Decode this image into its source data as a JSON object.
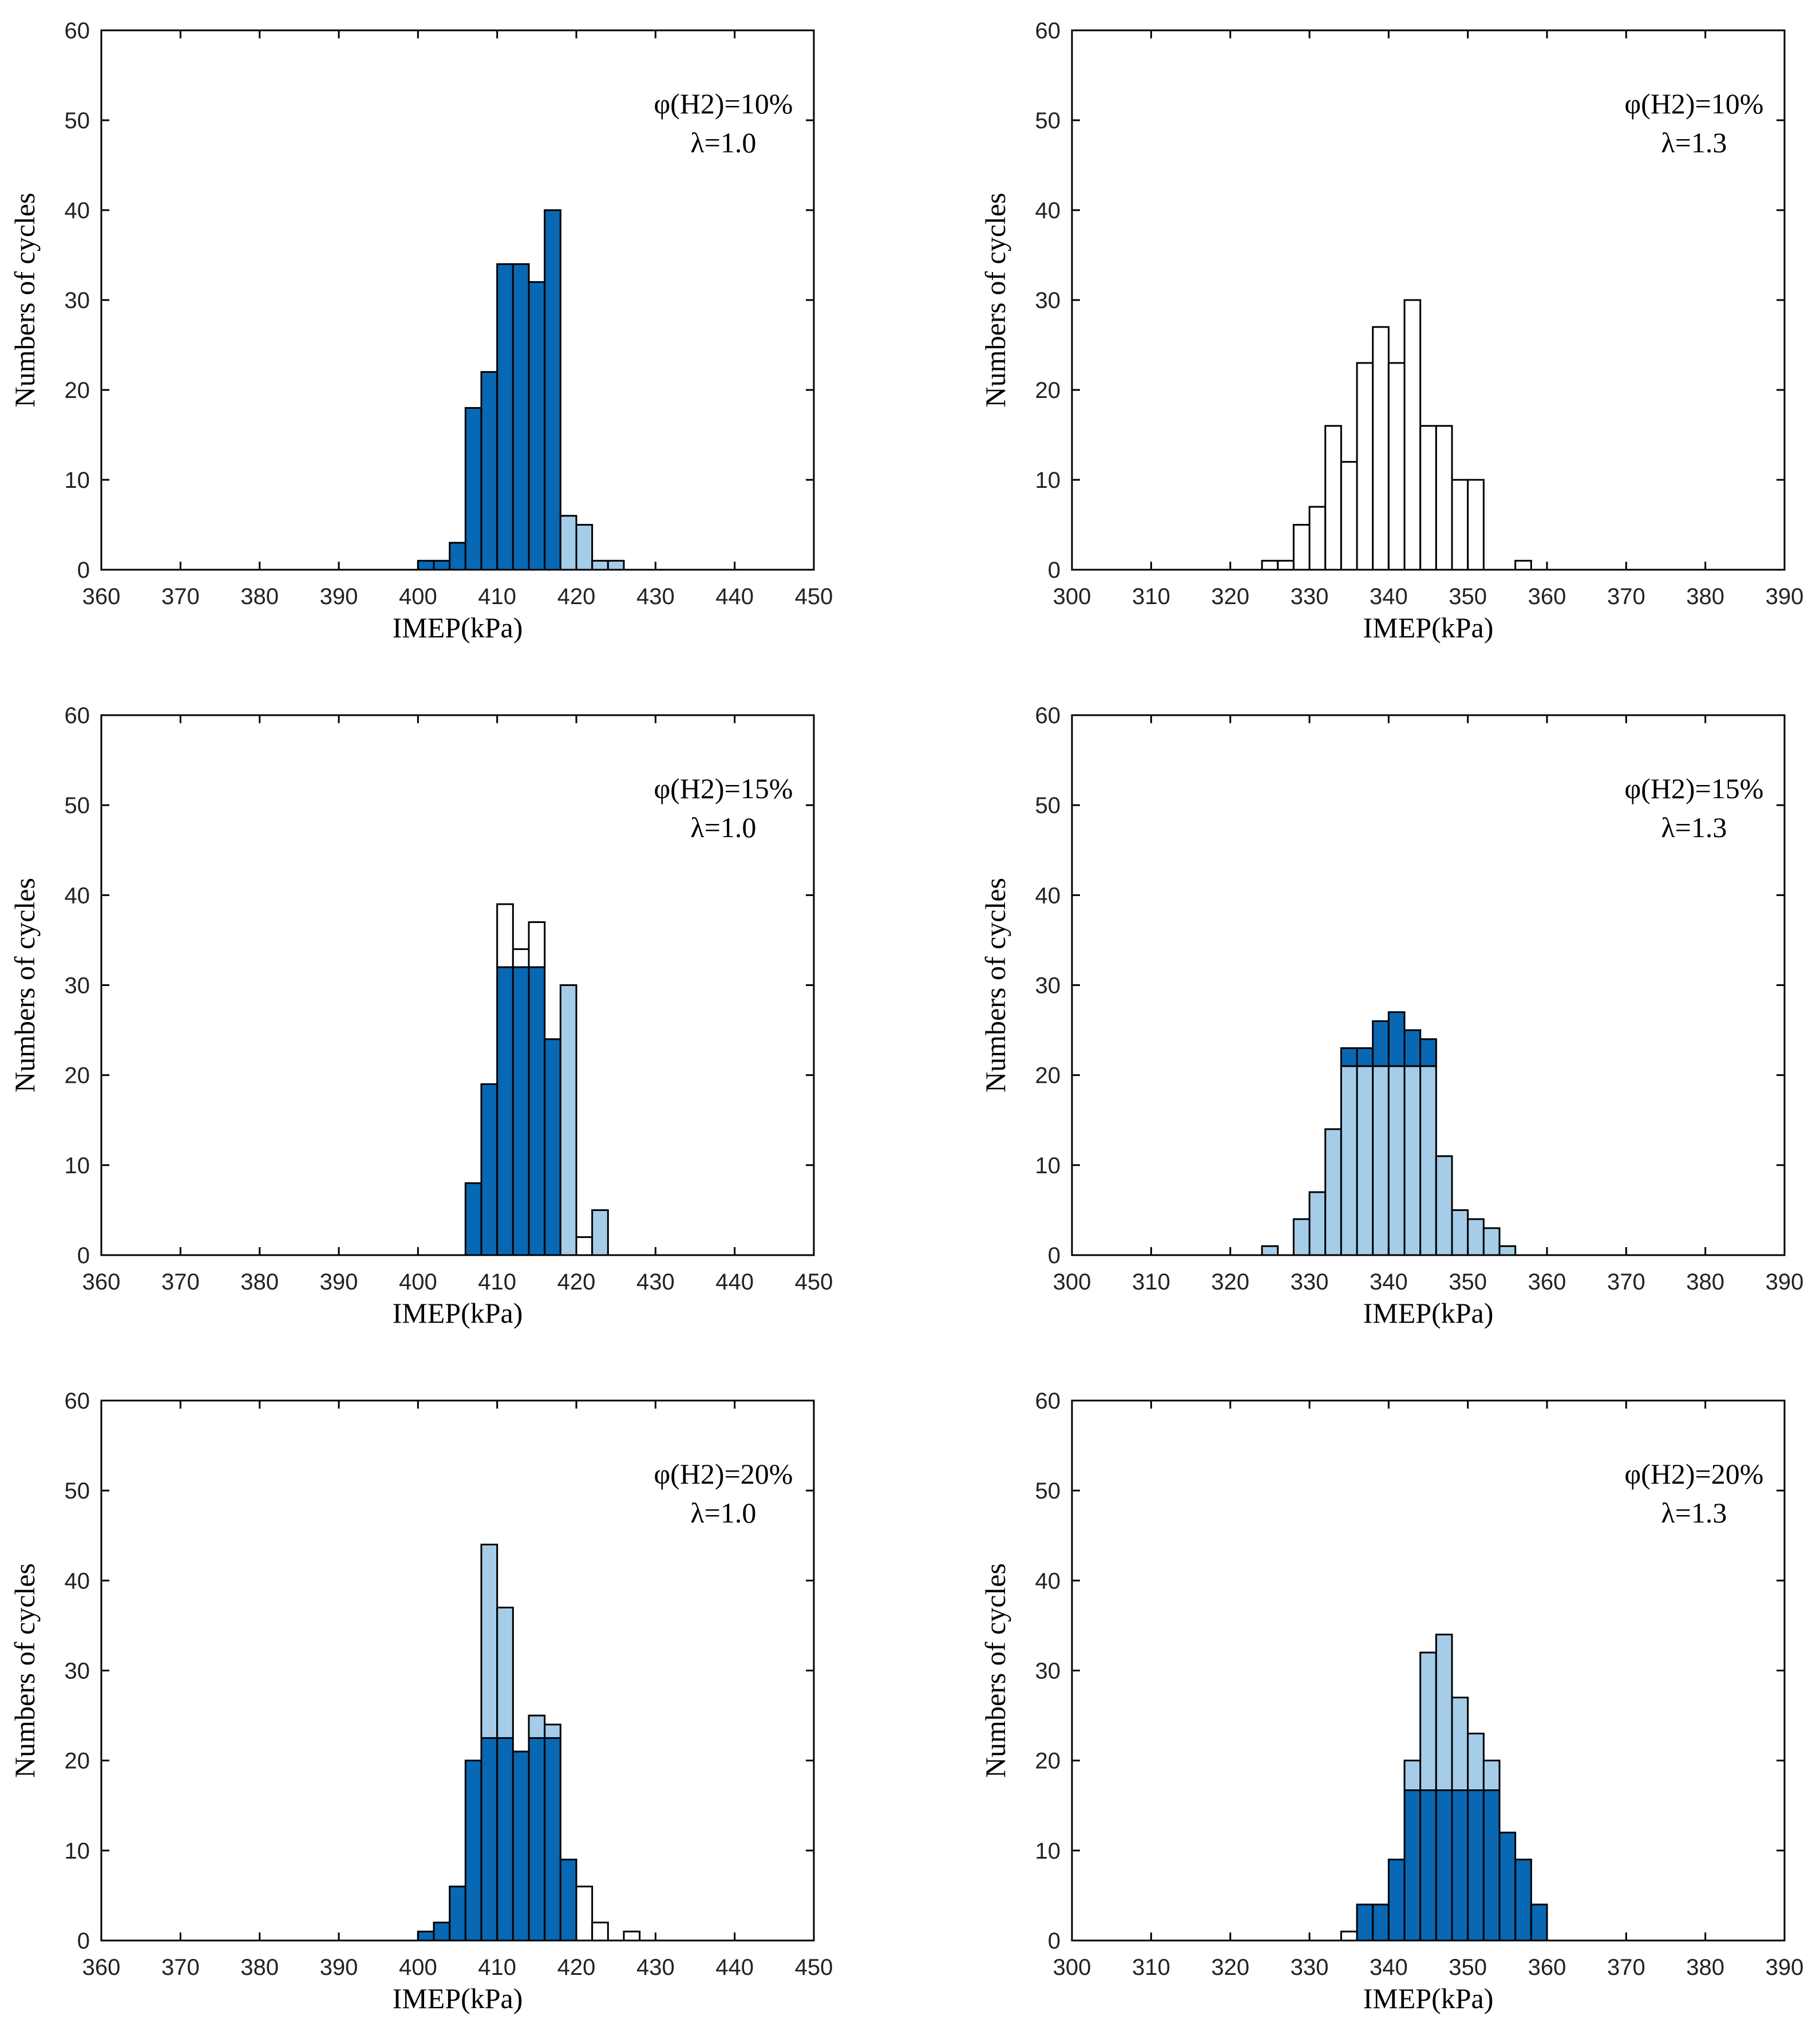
{
  "colors": {
    "dark": "#0868b4",
    "light": "#a5cdea",
    "white": "#ffffff",
    "axis": "#000000"
  },
  "chart_data": [
    {
      "type": "bar",
      "title": "",
      "annotation": [
        "φ(H2)=10%",
        "λ=1.0"
      ],
      "xlabel": "IMEP(kPa)",
      "ylabel": "Numbers of cycles",
      "xlim": [
        360,
        450
      ],
      "ylim": [
        0,
        60
      ],
      "xticks": [
        360,
        370,
        380,
        390,
        400,
        410,
        420,
        430,
        440,
        450
      ],
      "yticks": [
        0,
        10,
        20,
        30,
        40,
        50,
        60
      ],
      "bins": [
        {
          "start": 400,
          "width": 2,
          "segments": [
            {
              "value": 1,
              "color": "dark"
            }
          ]
        },
        {
          "start": 402,
          "width": 2,
          "segments": [
            {
              "value": 1,
              "color": "dark"
            }
          ]
        },
        {
          "start": 404,
          "width": 2,
          "segments": [
            {
              "value": 3,
              "color": "dark"
            }
          ]
        },
        {
          "start": 406,
          "width": 2,
          "segments": [
            {
              "value": 18,
              "color": "dark"
            }
          ]
        },
        {
          "start": 408,
          "width": 2,
          "segments": [
            {
              "value": 22,
              "color": "dark"
            }
          ]
        },
        {
          "start": 410,
          "width": 2,
          "segments": [
            {
              "value": 34,
              "color": "dark"
            }
          ]
        },
        {
          "start": 412,
          "width": 2,
          "segments": [
            {
              "value": 34,
              "color": "dark"
            }
          ]
        },
        {
          "start": 414,
          "width": 2,
          "segments": [
            {
              "value": 32,
              "color": "dark"
            }
          ]
        },
        {
          "start": 416,
          "width": 2,
          "segments": [
            {
              "value": 40,
              "color": "dark"
            }
          ]
        },
        {
          "start": 418,
          "width": 2,
          "segments": [
            {
              "value": 6,
              "color": "light"
            }
          ]
        },
        {
          "start": 420,
          "width": 2,
          "segments": [
            {
              "value": 5,
              "color": "light"
            }
          ]
        },
        {
          "start": 422,
          "width": 2,
          "segments": [
            {
              "value": 1,
              "color": "light"
            }
          ]
        },
        {
          "start": 424,
          "width": 2,
          "segments": [
            {
              "value": 1,
              "color": "light"
            }
          ]
        }
      ]
    },
    {
      "type": "bar",
      "title": "",
      "annotation": [
        "φ(H2)=10%",
        "λ=1.3"
      ],
      "xlabel": "IMEP(kPa)",
      "ylabel": "Numbers of cycles",
      "xlim": [
        300,
        390
      ],
      "ylim": [
        0,
        60
      ],
      "xticks": [
        300,
        310,
        320,
        330,
        340,
        350,
        360,
        370,
        380,
        390
      ],
      "yticks": [
        0,
        10,
        20,
        30,
        40,
        50,
        60
      ],
      "bins": [
        {
          "start": 324,
          "width": 2,
          "segments": [
            {
              "value": 1,
              "color": "white"
            }
          ]
        },
        {
          "start": 326,
          "width": 2,
          "segments": [
            {
              "value": 1,
              "color": "white"
            }
          ]
        },
        {
          "start": 328,
          "width": 2,
          "segments": [
            {
              "value": 5,
              "color": "white"
            }
          ]
        },
        {
          "start": 330,
          "width": 2,
          "segments": [
            {
              "value": 7,
              "color": "white"
            }
          ]
        },
        {
          "start": 332,
          "width": 2,
          "segments": [
            {
              "value": 16,
              "color": "white"
            }
          ]
        },
        {
          "start": 334,
          "width": 2,
          "segments": [
            {
              "value": 12,
              "color": "white"
            }
          ]
        },
        {
          "start": 336,
          "width": 2,
          "segments": [
            {
              "value": 23,
              "color": "white"
            }
          ]
        },
        {
          "start": 338,
          "width": 2,
          "segments": [
            {
              "value": 27,
              "color": "white"
            }
          ]
        },
        {
          "start": 340,
          "width": 2,
          "segments": [
            {
              "value": 23,
              "color": "white"
            }
          ]
        },
        {
          "start": 342,
          "width": 2,
          "segments": [
            {
              "value": 30,
              "color": "white"
            }
          ]
        },
        {
          "start": 344,
          "width": 2,
          "segments": [
            {
              "value": 16,
              "color": "white"
            }
          ]
        },
        {
          "start": 346,
          "width": 2,
          "segments": [
            {
              "value": 16,
              "color": "white"
            }
          ]
        },
        {
          "start": 348,
          "width": 2,
          "segments": [
            {
              "value": 10,
              "color": "white"
            }
          ]
        },
        {
          "start": 350,
          "width": 2,
          "segments": [
            {
              "value": 10,
              "color": "white"
            }
          ]
        },
        {
          "start": 356,
          "width": 2,
          "segments": [
            {
              "value": 1,
              "color": "white"
            }
          ]
        }
      ]
    },
    {
      "type": "bar",
      "title": "",
      "annotation": [
        "φ(H2)=15%",
        "λ=1.0"
      ],
      "xlabel": "IMEP(kPa)",
      "ylabel": "Numbers of cycles",
      "xlim": [
        360,
        450
      ],
      "ylim": [
        0,
        60
      ],
      "xticks": [
        360,
        370,
        380,
        390,
        400,
        410,
        420,
        430,
        440,
        450
      ],
      "yticks": [
        0,
        10,
        20,
        30,
        40,
        50,
        60
      ],
      "bins": [
        {
          "start": 406,
          "width": 2,
          "segments": [
            {
              "value": 8,
              "color": "dark"
            }
          ]
        },
        {
          "start": 408,
          "width": 2,
          "segments": [
            {
              "value": 19,
              "color": "dark"
            }
          ]
        },
        {
          "start": 410,
          "width": 2,
          "segments": [
            {
              "value": 32,
              "color": "dark"
            },
            {
              "value": 7,
              "color": "white"
            }
          ]
        },
        {
          "start": 412,
          "width": 2,
          "segments": [
            {
              "value": 32,
              "color": "dark"
            },
            {
              "value": 2,
              "color": "white"
            }
          ]
        },
        {
          "start": 414,
          "width": 2,
          "segments": [
            {
              "value": 32,
              "color": "dark"
            },
            {
              "value": 5,
              "color": "white"
            }
          ]
        },
        {
          "start": 416,
          "width": 2,
          "segments": [
            {
              "value": 24,
              "color": "dark"
            }
          ]
        },
        {
          "start": 418,
          "width": 2,
          "segments": [
            {
              "value": 30,
              "color": "light"
            }
          ]
        },
        {
          "start": 420,
          "width": 2,
          "segments": [
            {
              "value": 2,
              "color": "white"
            }
          ]
        },
        {
          "start": 422,
          "width": 2,
          "segments": [
            {
              "value": 5,
              "color": "light"
            }
          ]
        }
      ]
    },
    {
      "type": "bar",
      "title": "",
      "annotation": [
        "φ(H2)=15%",
        "λ=1.3"
      ],
      "xlabel": "IMEP(kPa)",
      "ylabel": "Numbers of cycles",
      "xlim": [
        300,
        390
      ],
      "ylim": [
        0,
        60
      ],
      "xticks": [
        300,
        310,
        320,
        330,
        340,
        350,
        360,
        370,
        380,
        390
      ],
      "yticks": [
        0,
        10,
        20,
        30,
        40,
        50,
        60
      ],
      "bins": [
        {
          "start": 324,
          "width": 2,
          "segments": [
            {
              "value": 1,
              "color": "light"
            }
          ]
        },
        {
          "start": 328,
          "width": 2,
          "segments": [
            {
              "value": 4,
              "color": "light"
            }
          ]
        },
        {
          "start": 330,
          "width": 2,
          "segments": [
            {
              "value": 7,
              "color": "light"
            }
          ]
        },
        {
          "start": 332,
          "width": 2,
          "segments": [
            {
              "value": 14,
              "color": "light"
            }
          ]
        },
        {
          "start": 334,
          "width": 2,
          "segments": [
            {
              "value": 21,
              "color": "light"
            },
            {
              "value": 2,
              "color": "dark"
            }
          ]
        },
        {
          "start": 336,
          "width": 2,
          "segments": [
            {
              "value": 21,
              "color": "light"
            },
            {
              "value": 2,
              "color": "dark"
            }
          ]
        },
        {
          "start": 338,
          "width": 2,
          "segments": [
            {
              "value": 21,
              "color": "light"
            },
            {
              "value": 5,
              "color": "dark"
            }
          ]
        },
        {
          "start": 340,
          "width": 2,
          "segments": [
            {
              "value": 21,
              "color": "light"
            },
            {
              "value": 6,
              "color": "dark"
            }
          ]
        },
        {
          "start": 342,
          "width": 2,
          "segments": [
            {
              "value": 21,
              "color": "light"
            },
            {
              "value": 4,
              "color": "dark"
            }
          ]
        },
        {
          "start": 344,
          "width": 2,
          "segments": [
            {
              "value": 21,
              "color": "light"
            },
            {
              "value": 3,
              "color": "dark"
            }
          ]
        },
        {
          "start": 346,
          "width": 2,
          "segments": [
            {
              "value": 11,
              "color": "light"
            }
          ]
        },
        {
          "start": 348,
          "width": 2,
          "segments": [
            {
              "value": 5,
              "color": "light"
            }
          ]
        },
        {
          "start": 350,
          "width": 2,
          "segments": [
            {
              "value": 4,
              "color": "light"
            }
          ]
        },
        {
          "start": 352,
          "width": 2,
          "segments": [
            {
              "value": 3,
              "color": "light"
            }
          ]
        },
        {
          "start": 354,
          "width": 2,
          "segments": [
            {
              "value": 1,
              "color": "light"
            }
          ]
        }
      ]
    },
    {
      "type": "bar",
      "title": "",
      "annotation": [
        "φ(H2)=20%",
        "λ=1.0"
      ],
      "xlabel": "IMEP(kPa)",
      "ylabel": "Numbers of cycles",
      "xlim": [
        360,
        450
      ],
      "ylim": [
        0,
        60
      ],
      "xticks": [
        360,
        370,
        380,
        390,
        400,
        410,
        420,
        430,
        440,
        450
      ],
      "yticks": [
        0,
        10,
        20,
        30,
        40,
        50,
        60
      ],
      "bins": [
        {
          "start": 400,
          "width": 2,
          "segments": [
            {
              "value": 1,
              "color": "dark"
            }
          ]
        },
        {
          "start": 402,
          "width": 2,
          "segments": [
            {
              "value": 2,
              "color": "dark"
            }
          ]
        },
        {
          "start": 404,
          "width": 2,
          "segments": [
            {
              "value": 6,
              "color": "dark"
            }
          ]
        },
        {
          "start": 406,
          "width": 2,
          "segments": [
            {
              "value": 20,
              "color": "dark"
            }
          ]
        },
        {
          "start": 408,
          "width": 2,
          "segments": [
            {
              "value": 22.5,
              "color": "dark"
            },
            {
              "value": 21.5,
              "color": "light"
            }
          ]
        },
        {
          "start": 410,
          "width": 2,
          "segments": [
            {
              "value": 22.5,
              "color": "dark"
            },
            {
              "value": 14.5,
              "color": "light"
            }
          ]
        },
        {
          "start": 412,
          "width": 2,
          "segments": [
            {
              "value": 21,
              "color": "dark"
            }
          ]
        },
        {
          "start": 414,
          "width": 2,
          "segments": [
            {
              "value": 22.5,
              "color": "dark"
            },
            {
              "value": 2.5,
              "color": "light"
            }
          ]
        },
        {
          "start": 416,
          "width": 2,
          "segments": [
            {
              "value": 22.5,
              "color": "dark"
            },
            {
              "value": 1.5,
              "color": "light"
            }
          ]
        },
        {
          "start": 418,
          "width": 2,
          "segments": [
            {
              "value": 9,
              "color": "dark"
            }
          ]
        },
        {
          "start": 420,
          "width": 2,
          "segments": [
            {
              "value": 6,
              "color": "white"
            }
          ]
        },
        {
          "start": 422,
          "width": 2,
          "segments": [
            {
              "value": 2,
              "color": "white"
            }
          ]
        },
        {
          "start": 426,
          "width": 2,
          "segments": [
            {
              "value": 1,
              "color": "white"
            }
          ]
        }
      ]
    },
    {
      "type": "bar",
      "title": "",
      "annotation": [
        "φ(H2)=20%",
        "λ=1.3"
      ],
      "xlabel": "IMEP(kPa)",
      "ylabel": "Numbers of cycles",
      "xlim": [
        300,
        390
      ],
      "ylim": [
        0,
        60
      ],
      "xticks": [
        300,
        310,
        320,
        330,
        340,
        350,
        360,
        370,
        380,
        390
      ],
      "yticks": [
        0,
        10,
        20,
        30,
        40,
        50,
        60
      ],
      "bins": [
        {
          "start": 334,
          "width": 2,
          "segments": [
            {
              "value": 1,
              "color": "white"
            }
          ]
        },
        {
          "start": 336,
          "width": 2,
          "segments": [
            {
              "value": 4,
              "color": "dark"
            }
          ]
        },
        {
          "start": 338,
          "width": 2,
          "segments": [
            {
              "value": 4,
              "color": "dark"
            }
          ]
        },
        {
          "start": 340,
          "width": 2,
          "segments": [
            {
              "value": 9,
              "color": "dark"
            }
          ]
        },
        {
          "start": 342,
          "width": 2,
          "segments": [
            {
              "value": 16.7,
              "color": "dark"
            },
            {
              "value": 3.3,
              "color": "light"
            }
          ]
        },
        {
          "start": 344,
          "width": 2,
          "segments": [
            {
              "value": 16.7,
              "color": "dark"
            },
            {
              "value": 15.3,
              "color": "light"
            }
          ]
        },
        {
          "start": 346,
          "width": 2,
          "segments": [
            {
              "value": 16.7,
              "color": "dark"
            },
            {
              "value": 17.3,
              "color": "light"
            }
          ]
        },
        {
          "start": 348,
          "width": 2,
          "segments": [
            {
              "value": 16.7,
              "color": "dark"
            },
            {
              "value": 10.3,
              "color": "light"
            }
          ]
        },
        {
          "start": 350,
          "width": 2,
          "segments": [
            {
              "value": 16.7,
              "color": "dark"
            },
            {
              "value": 6.3,
              "color": "light"
            }
          ]
        },
        {
          "start": 352,
          "width": 2,
          "segments": [
            {
              "value": 16.7,
              "color": "dark"
            },
            {
              "value": 3.3,
              "color": "light"
            }
          ]
        },
        {
          "start": 354,
          "width": 2,
          "segments": [
            {
              "value": 12,
              "color": "dark"
            }
          ]
        },
        {
          "start": 356,
          "width": 2,
          "segments": [
            {
              "value": 9,
              "color": "dark"
            }
          ]
        },
        {
          "start": 358,
          "width": 2,
          "segments": [
            {
              "value": 4,
              "color": "dark"
            }
          ]
        }
      ]
    }
  ]
}
